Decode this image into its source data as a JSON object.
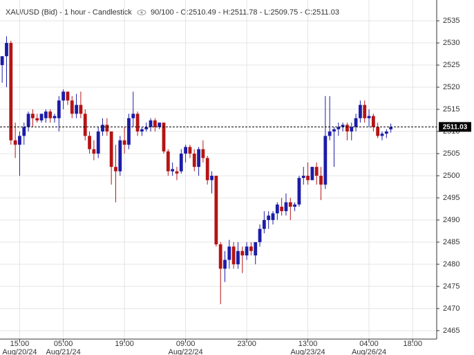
{
  "chart_data": {
    "type": "candlestick",
    "title": "XAU/USD (Bid) - 1 hour - Candlestick",
    "subtitle": "90/100 - O:2510.49 - H:2511.78 - L:2509.75 - C:2511.03",
    "up_color": "#1c1ca8",
    "down_color": "#b51414",
    "grid": true,
    "ylim": [
      2463.1,
      2539.7
    ],
    "yticks": [
      2465,
      2470,
      2475,
      2480,
      2485,
      2490,
      2495,
      2500,
      2505,
      2510,
      2515,
      2520,
      2525,
      2530,
      2535
    ],
    "price_label": 2511.03,
    "categories": [
      null,
      null,
      null,
      null,
      "15:00",
      null,
      null,
      null,
      null,
      null,
      null,
      null,
      null,
      null,
      "05:00",
      null,
      null,
      null,
      null,
      null,
      null,
      null,
      null,
      null,
      null,
      null,
      null,
      null,
      "19:00",
      null,
      null,
      null,
      null,
      null,
      null,
      null,
      null,
      null,
      null,
      null,
      null,
      null,
      "09:00",
      null,
      null,
      null,
      null,
      null,
      null,
      null,
      null,
      null,
      null,
      null,
      null,
      null,
      "23:00",
      null,
      null,
      null,
      null,
      null,
      null,
      null,
      null,
      null,
      null,
      null,
      null,
      null,
      "13:00",
      null,
      null,
      null,
      null,
      null,
      null,
      null,
      null,
      null,
      null,
      null,
      null,
      null,
      "04:00",
      null,
      null,
      null,
      null,
      null,
      null,
      null,
      null,
      null,
      "18:00",
      null,
      null,
      null,
      null,
      null
    ],
    "category_dates": [
      null,
      null,
      null,
      null,
      "Aug/20/24",
      null,
      null,
      null,
      null,
      null,
      null,
      null,
      null,
      null,
      "Aug/21/24",
      null,
      null,
      null,
      null,
      null,
      null,
      null,
      null,
      null,
      null,
      null,
      null,
      null,
      null,
      null,
      null,
      null,
      null,
      null,
      null,
      null,
      null,
      null,
      null,
      null,
      null,
      null,
      "Aug/22/24",
      null,
      null,
      null,
      null,
      null,
      null,
      null,
      null,
      null,
      null,
      null,
      null,
      null,
      null,
      null,
      null,
      null,
      null,
      null,
      null,
      null,
      null,
      null,
      null,
      null,
      null,
      null,
      "Aug/23/24",
      null,
      null,
      null,
      null,
      null,
      null,
      null,
      null,
      null,
      null,
      null,
      null,
      null,
      "Aug/26/24",
      null,
      null,
      null,
      null,
      null,
      null,
      null,
      null,
      null,
      null,
      null,
      null,
      null,
      null,
      null
    ],
    "open": [
      2525,
      2527,
      2530,
      2508,
      2507,
      2509,
      2511,
      2514,
      2513,
      2512.5,
      2513,
      2514.5,
      2513,
      2513,
      2517,
      2519,
      2517,
      2514,
      2516,
      2514,
      2509,
      2506,
      2505,
      2510,
      2511.5,
      2510,
      2502,
      2501,
      2508,
      2507,
      2513,
      2514,
      2510,
      2510.5,
      2511,
      2512.5,
      2511,
      2512,
      2505.5,
      2501,
      2501,
      2501,
      2505,
      2506.5,
      2505,
      2502,
      2506,
      2504,
      2499,
      2500,
      2484.5,
      2479,
      2481,
      2484,
      2480,
      2483,
      2482,
      2484,
      2482,
      2485,
      2488,
      2490,
      2490,
      2491.5,
      2493,
      2492,
      2494,
      2493,
      2493.5,
      2499.5,
      2500,
      2499,
      2502,
      2500,
      2498,
      2509,
      2510,
      2510.5,
      2511,
      2511.5,
      2510,
      2511,
      2513,
      2516,
      2513,
      2513.5,
      2511,
      2509,
      2509.5,
      2510.49,
      null,
      null,
      null,
      null,
      null,
      null,
      null,
      null,
      null,
      null
    ],
    "high": [
      2527,
      2531.5,
      2530.5,
      2512,
      2510,
      2512,
      2514.5,
      2515,
      2514,
      2514,
      2515,
      2515,
      2514,
      2518,
      2519.5,
      2519,
      2518,
      2518.5,
      2519,
      2515,
      2510,
      2508,
      2511,
      2513,
      2513,
      2510,
      2507,
      2509,
      2511,
      2514,
      2519,
      2514.5,
      2511,
      2512,
      2513,
      2513,
      2512,
      2512,
      2506,
      2503,
      2502,
      2506,
      2507,
      2507,
      2506,
      2506.5,
      2508,
      2504.5,
      2501,
      2500,
      2485,
      2483,
      2485.5,
      2485,
      2485,
      2484,
      2485,
      2485,
      2485,
      2489,
      2492,
      2492,
      2492,
      2494,
      2495,
      2496,
      2495,
      2494,
      2500,
      2502,
      2503,
      2502,
      2503,
      2502,
      2518,
      2518,
      2511,
      2512,
      2512,
      2512,
      2512,
      2514,
      2517,
      2517,
      2515,
      2514,
      2512,
      2510,
      2510.5,
      2511.78,
      null,
      null,
      null,
      null,
      null,
      null,
      null,
      null,
      null,
      null
    ],
    "low": [
      2521,
      2520,
      2507,
      2504,
      2500,
      2507,
      2510,
      2511,
      2512,
      2512,
      2512,
      2512,
      2512,
      2510,
      2515,
      2516,
      2513,
      2513,
      2513,
      2508,
      2505,
      2503.5,
      2504,
      2509,
      2509,
      2498,
      2494,
      2500,
      2505,
      2506,
      2511,
      2509,
      2509,
      2510,
      2510,
      2510,
      2510.5,
      2505,
      2500,
      2500,
      2499,
      2500.5,
      2503,
      2504,
      2501,
      2500,
      2503,
      2498,
      2496,
      2484,
      2471,
      2476,
      2479,
      2479,
      2479,
      2478,
      2481,
      2482,
      2480,
      2484,
      2487,
      2488,
      2489,
      2490,
      2491,
      2491,
      2490,
      2492,
      2493,
      2498,
      2498,
      2499,
      2498,
      2494.5,
      2497,
      2508,
      2502,
      2509,
      2510,
      2508,
      2508,
      2510,
      2512,
      2512,
      2511,
      2510,
      2508.5,
      2508,
      2508.5,
      2509.75,
      null,
      null,
      null,
      null,
      null,
      null,
      null,
      null,
      null,
      null
    ],
    "close": [
      2527,
      2530,
      2508,
      2507,
      2509,
      2511,
      2514,
      2513,
      2512.5,
      2514,
      2514.5,
      2513,
      2513.5,
      2517,
      2519,
      2517,
      2514,
      2516,
      2514,
      2509,
      2506,
      2505,
      2510,
      2511.5,
      2510,
      2502,
      2501,
      2508,
      2507,
      2513,
      2514,
      2510,
      2510.5,
      2511,
      2512.5,
      2511,
      2512,
      2505.5,
      2501,
      2501.5,
      2500.5,
      2505,
      2506.5,
      2505,
      2502,
      2506,
      2504,
      2499,
      2500,
      2484.5,
      2479,
      2481,
      2484,
      2480,
      2483,
      2482,
      2484,
      2483,
      2485,
      2488,
      2490,
      2491,
      2491.5,
      2493.5,
      2492,
      2494,
      2493,
      2493.5,
      2499.5,
      2500,
      2499,
      2502,
      2500,
      2498,
      2509,
      2510,
      2510.5,
      2511,
      2511.5,
      2510,
      2511,
      2513,
      2516,
      2513,
      2513.5,
      2511,
      2509,
      2509.5,
      2510,
      2511.03,
      null,
      null,
      null,
      null,
      null,
      null,
      null,
      null,
      null,
      null
    ]
  }
}
